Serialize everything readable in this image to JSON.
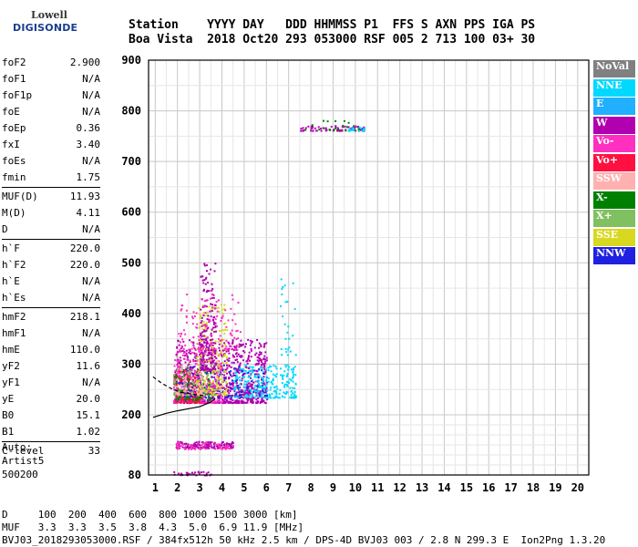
{
  "logo": {
    "line1": "Lowell",
    "line2": "DIGISONDE"
  },
  "header": {
    "line1": "Station    YYYY DAY   DDD HHMMSS P1  FFS S AXN PPS IGA PS",
    "line2": "Boa Vista  2018 Oct20 293 053000 RSF 005 2 713 100 03+ 30"
  },
  "params": [
    [
      {
        "label": "foF2",
        "value": "2.900"
      },
      {
        "label": "foF1",
        "value": "N/A"
      },
      {
        "label": "foF1p",
        "value": "N/A"
      },
      {
        "label": "foE",
        "value": "N/A"
      },
      {
        "label": "foEp",
        "value": "0.36"
      },
      {
        "label": "fxI",
        "value": "3.40"
      },
      {
        "label": "foEs",
        "value": "N/A"
      },
      {
        "label": "fmin",
        "value": "1.75"
      }
    ],
    [
      {
        "label": "MUF(D)",
        "value": "11.93"
      },
      {
        "label": "M(D)",
        "value": "4.11"
      },
      {
        "label": "D",
        "value": "N/A"
      }
    ],
    [
      {
        "label": "h`F",
        "value": "220.0"
      },
      {
        "label": "h`F2",
        "value": "220.0"
      },
      {
        "label": "h`E",
        "value": "N/A"
      },
      {
        "label": "h`Es",
        "value": "N/A"
      }
    ],
    [
      {
        "label": "hmF2",
        "value": "218.1"
      },
      {
        "label": "hmF1",
        "value": "N/A"
      },
      {
        "label": "hmE",
        "value": "110.0"
      },
      {
        "label": "yF2",
        "value": "11.6"
      },
      {
        "label": "yF1",
        "value": "N/A"
      },
      {
        "label": "yE",
        "value": "20.0"
      },
      {
        "label": "B0",
        "value": "15.1"
      },
      {
        "label": "B1",
        "value": "1.02"
      }
    ],
    [
      {
        "label": "C-level",
        "value": "33"
      }
    ]
  ],
  "auto": {
    "line1": "Auto:",
    "line2": "Artist5",
    "line3": "500200"
  },
  "footer": {
    "line1": "D     100  200  400  600  800 1000 1500 3000 [km]",
    "line2": "MUF   3.3  3.3  3.5  3.8  4.3  5.0  6.9 11.9 [MHz]",
    "line3": "BVJ03_2018293053000.RSF / 384fx512h 50 kHz 2.5 km / DPS-4D BVJ03 003 / 2.8 N 299.3 E  Ion2Png 1.3.20"
  },
  "legend": [
    {
      "label": "NoVal",
      "color": "#808080"
    },
    {
      "label": "NNE",
      "color": "#00d8ff"
    },
    {
      "label": "E",
      "color": "#20b0ff"
    },
    {
      "label": "W",
      "color": "#b000b0"
    },
    {
      "label": "Vo-",
      "color": "#ff30c0"
    },
    {
      "label": "Vo+",
      "color": "#ff1040"
    },
    {
      "label": "SSW",
      "color": "#ffb0b0"
    },
    {
      "label": "X-",
      "color": "#008000"
    },
    {
      "label": "X+",
      "color": "#80c060"
    },
    {
      "label": "SSE",
      "color": "#d8d820"
    },
    {
      "label": "NNW",
      "color": "#2020e0"
    }
  ],
  "chart_data": {
    "type": "scatter",
    "x_ticks": [
      1,
      2,
      3,
      4,
      5,
      6,
      7,
      8,
      9,
      10,
      11,
      12,
      13,
      14,
      15,
      16,
      17,
      18,
      19,
      20
    ],
    "y_ticks": [
      80,
      200,
      300,
      400,
      500,
      600,
      700,
      800,
      900
    ],
    "xlim": [
      0.7,
      20.5
    ],
    "ylim": [
      80,
      900
    ],
    "clusters": [
      {
        "series": "W",
        "x": [
          1.8,
          6.0
        ],
        "y": [
          225,
          350
        ],
        "n": 900
      },
      {
        "series": "Vo-",
        "x": [
          1.8,
          4.0
        ],
        "y": [
          225,
          330
        ],
        "n": 260
      },
      {
        "series": "Vo+",
        "x": [
          1.8,
          3.0
        ],
        "y": [
          225,
          290
        ],
        "n": 140
      },
      {
        "series": "NNE",
        "x": [
          4.5,
          7.3
        ],
        "y": [
          235,
          300
        ],
        "n": 240
      },
      {
        "series": "NNW",
        "x": [
          1.9,
          6.0
        ],
        "y": [
          235,
          300
        ],
        "n": 120
      },
      {
        "series": "SSE",
        "x": [
          2.8,
          4.2
        ],
        "y": [
          240,
          420
        ],
        "n": 200
      },
      {
        "series": "X-",
        "x": [
          1.8,
          3.5
        ],
        "y": [
          230,
          290
        ],
        "n": 90
      },
      {
        "series": "X+",
        "x": [
          1.8,
          3.8
        ],
        "y": [
          240,
          320
        ],
        "n": 80
      },
      {
        "series": "SSW",
        "x": [
          1.9,
          3.2
        ],
        "y": [
          240,
          300
        ],
        "n": 70
      },
      {
        "series": "W",
        "x": [
          3.0,
          3.7
        ],
        "y": [
          290,
          505
        ],
        "n": 160
      },
      {
        "series": "Vo-",
        "x": [
          2.0,
          4.8
        ],
        "y": [
          330,
          440
        ],
        "n": 110
      },
      {
        "series": "W",
        "x": [
          1.9,
          4.5
        ],
        "y": [
          135,
          148
        ],
        "n": 140
      },
      {
        "series": "Vo-",
        "x": [
          1.9,
          4.5
        ],
        "y": [
          133,
          146
        ],
        "n": 60
      },
      {
        "series": "W",
        "x": [
          1.8,
          3.6
        ],
        "y": [
          81,
          88
        ],
        "n": 30
      },
      {
        "series": "W",
        "x": [
          7.5,
          10.4
        ],
        "y": [
          762,
          772
        ],
        "n": 70
      },
      {
        "series": "X-",
        "x": [
          7.6,
          10.3
        ],
        "y": [
          762,
          782
        ],
        "n": 25
      },
      {
        "series": "NNE",
        "x": [
          9.6,
          10.4
        ],
        "y": [
          762,
          770
        ],
        "n": 15
      },
      {
        "series": "NNE",
        "x": [
          6.6,
          7.3
        ],
        "y": [
          260,
          470
        ],
        "n": 40
      }
    ],
    "profile_lines": [
      {
        "style": "solid",
        "points": [
          [
            0.9,
            195
          ],
          [
            1.5,
            203
          ],
          [
            2.0,
            208
          ],
          [
            2.5,
            212
          ],
          [
            3.0,
            216
          ],
          [
            3.5,
            225
          ],
          [
            3.7,
            232
          ]
        ]
      },
      {
        "style": "dashed",
        "points": [
          [
            0.9,
            275
          ],
          [
            1.3,
            262
          ],
          [
            1.8,
            250
          ],
          [
            2.2,
            244
          ],
          [
            2.8,
            240
          ],
          [
            3.2,
            238
          ]
        ]
      }
    ]
  }
}
